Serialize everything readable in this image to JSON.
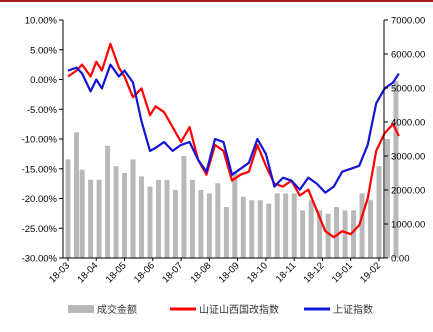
{
  "chart_data": {
    "type": "bar+line",
    "title": "",
    "xlabel": "",
    "ylabel_left": "",
    "ylabel_right": "",
    "x_tick_labels": [
      "18-03",
      "18-04",
      "18-05",
      "18-06",
      "18-07",
      "18-08",
      "18-09",
      "18-10",
      "18-11",
      "18-12",
      "19-01",
      "19-02"
    ],
    "left_axis": {
      "min": -30,
      "max": 10,
      "tick_labels": [
        "10.00%",
        "5.00%",
        "0.00%",
        "-5.00%",
        "-10.00%",
        "-15.00%",
        "-20.00%",
        "-25.00%",
        "-30.00%"
      ],
      "tick_values": [
        10,
        5,
        0,
        -5,
        -10,
        -15,
        -20,
        -25,
        -30
      ]
    },
    "right_axis": {
      "min": 0,
      "max": 7000,
      "tick_labels": [
        "7000.00",
        "6000.00",
        "5000.00",
        "4000.00",
        "3000.00",
        "2000.00",
        "1000.00",
        "0.00"
      ],
      "tick_values": [
        7000,
        6000,
        5000,
        4000,
        3000,
        2000,
        1000,
        0
      ]
    },
    "legend": {
      "position": "bottom",
      "items": [
        {
          "name": "成交金额",
          "color": "#b8b8b8",
          "kind": "bar"
        },
        {
          "name": "山证山西国改指数",
          "color": "#ff0000",
          "kind": "line"
        },
        {
          "name": "上证指数",
          "color": "#1414d6",
          "kind": "line"
        }
      ]
    },
    "series": [
      {
        "name": "成交金额",
        "axis": "right",
        "color": "#b8b8b8",
        "x": [
          0,
          0.3,
          0.5,
          0.8,
          1.1,
          1.4,
          1.7,
          2,
          2.3,
          2.6,
          2.9,
          3.2,
          3.5,
          3.8,
          4.1,
          4.4,
          4.7,
          5,
          5.3,
          5.6,
          5.9,
          6.2,
          6.5,
          6.8,
          7.1,
          7.4,
          7.7,
          8,
          8.3,
          8.6,
          8.9,
          9.2,
          9.5,
          9.8,
          10.1,
          10.4,
          10.7,
          11,
          11.3,
          11.6
        ],
        "values": [
          2900,
          3700,
          2600,
          2300,
          2300,
          3300,
          2700,
          2500,
          2900,
          2400,
          2100,
          2300,
          2300,
          2000,
          3000,
          2300,
          2000,
          1900,
          2200,
          1500,
          2500,
          1800,
          1700,
          1700,
          1600,
          1900,
          1900,
          1900,
          1400,
          1700,
          1400,
          1300,
          1500,
          1400,
          1400,
          1900,
          1700,
          2700,
          3500,
          5200
        ]
      },
      {
        "name": "山证山西国改指数",
        "axis": "left",
        "color": "#ff0000",
        "x": [
          0,
          0.3,
          0.5,
          0.8,
          1.0,
          1.2,
          1.5,
          1.8,
          2.0,
          2.3,
          2.6,
          2.9,
          3.1,
          3.4,
          3.7,
          4.0,
          4.3,
          4.6,
          4.9,
          5.2,
          5.5,
          5.8,
          6.1,
          6.4,
          6.7,
          7.0,
          7.3,
          7.6,
          7.9,
          8.2,
          8.5,
          8.8,
          9.1,
          9.4,
          9.7,
          10.0,
          10.3,
          10.6,
          10.9,
          11.2,
          11.5,
          11.7
        ],
        "values": [
          0.5,
          1.5,
          2.5,
          0.5,
          3.0,
          1.5,
          6.0,
          2.0,
          0.5,
          -3.0,
          -1.5,
          -6.0,
          -4.5,
          -5.5,
          -8.0,
          -10.5,
          -8.0,
          -13.5,
          -16.0,
          -11.0,
          -12.0,
          -17.0,
          -16.0,
          -15.5,
          -11.0,
          -14.5,
          -17.5,
          -18.0,
          -17.0,
          -19.5,
          -18.5,
          -22.0,
          -25.5,
          -26.5,
          -25.5,
          -26.0,
          -24.5,
          -20.0,
          -12.0,
          -9.0,
          -7.5,
          -9.5
        ]
      },
      {
        "name": "上证指数",
        "axis": "left",
        "color": "#1414d6",
        "x": [
          0,
          0.3,
          0.5,
          0.8,
          1.0,
          1.2,
          1.5,
          1.8,
          2.0,
          2.3,
          2.6,
          2.9,
          3.1,
          3.4,
          3.7,
          4.0,
          4.3,
          4.6,
          4.9,
          5.2,
          5.5,
          5.8,
          6.1,
          6.4,
          6.7,
          7.0,
          7.3,
          7.6,
          7.9,
          8.2,
          8.5,
          8.8,
          9.1,
          9.4,
          9.7,
          10.0,
          10.3,
          10.6,
          10.9,
          11.2,
          11.5,
          11.7
        ],
        "values": [
          1.5,
          2.0,
          1.0,
          -2.0,
          0.0,
          -1.5,
          2.5,
          0.5,
          1.5,
          -0.5,
          -7.0,
          -12.0,
          -11.5,
          -10.5,
          -12.0,
          -11.0,
          -10.5,
          -13.5,
          -15.5,
          -10.0,
          -10.5,
          -16.0,
          -15.0,
          -14.0,
          -10.0,
          -12.5,
          -18.0,
          -16.5,
          -17.0,
          -18.5,
          -16.5,
          -17.5,
          -19.0,
          -18.0,
          -15.5,
          -15.0,
          -14.5,
          -11.0,
          -4.0,
          -1.5,
          -0.5,
          1.0
        ]
      }
    ]
  }
}
